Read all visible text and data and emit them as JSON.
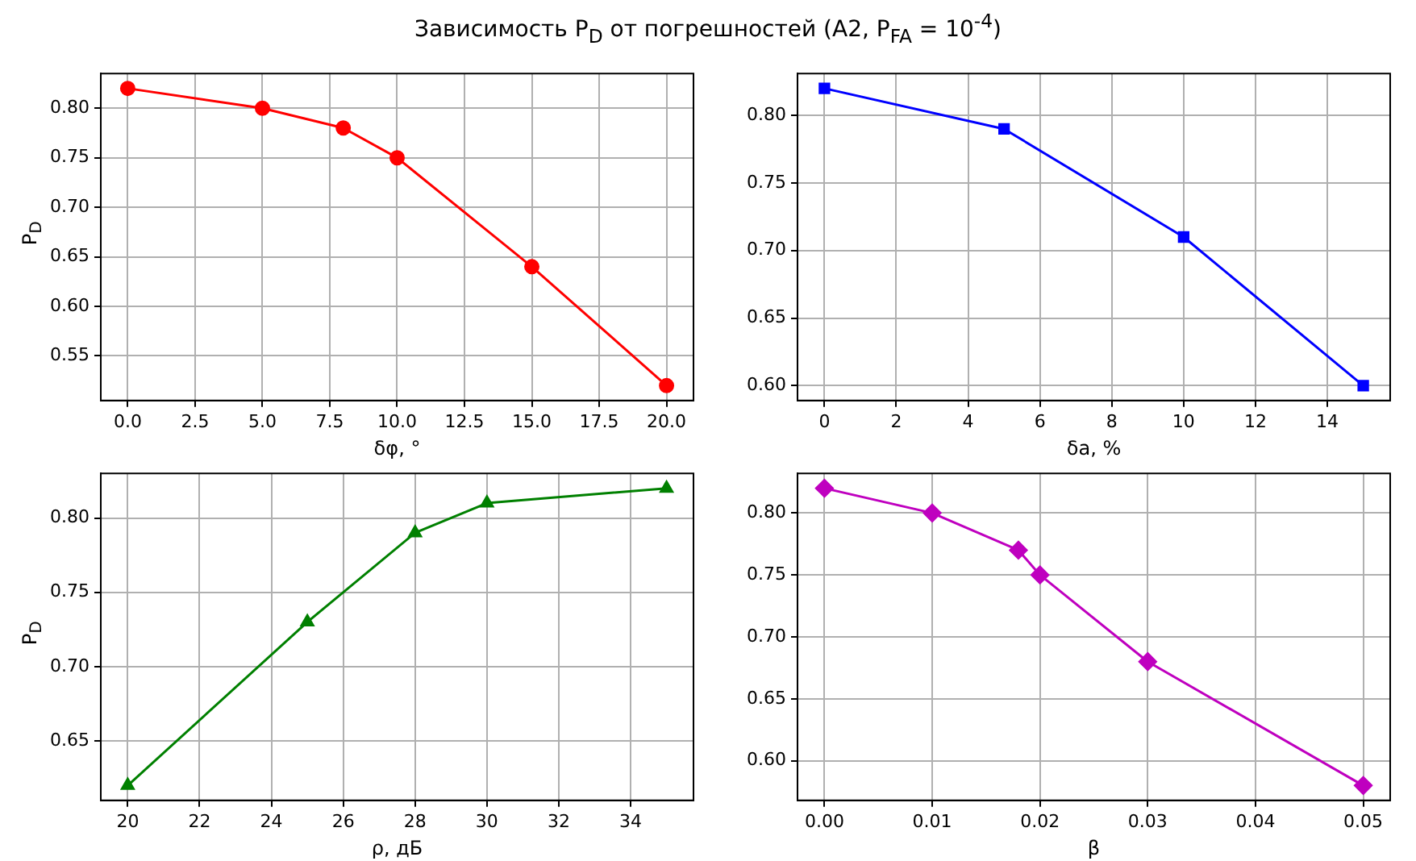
{
  "chart_data": [
    {
      "type": "line",
      "title": "Зависимость P$_{D}$ от погрешностей (A2, P$_{FA}$ = 10$^{-4}$)",
      "xlabel": "δφ, °",
      "ylabel": "P$_{D}$",
      "x": [
        0,
        5,
        8,
        10,
        15,
        20
      ],
      "series": [
        {
          "color": "#ff0000",
          "values": [
            0.82,
            0.8,
            0.78,
            0.75,
            0.64,
            0.52
          ]
        }
      ],
      "xlim": [
        -1,
        21
      ],
      "xticks": [
        {
          "value": 0,
          "label": "0.0"
        },
        {
          "value": 2.5,
          "label": "2.5"
        },
        {
          "value": 5,
          "label": "5.0"
        },
        {
          "value": 7.5,
          "label": "7.5"
        },
        {
          "value": 10,
          "label": "10.0"
        },
        {
          "value": 12.5,
          "label": "12.5"
        },
        {
          "value": 15,
          "label": "15.0"
        },
        {
          "value": 17.5,
          "label": "17.5"
        },
        {
          "value": 20,
          "label": "20.0"
        }
      ],
      "ylim": [
        0.505,
        0.835
      ],
      "yticks": [
        {
          "value": 0.55,
          "label": "0.55"
        },
        {
          "value": 0.6,
          "label": "0.60"
        },
        {
          "value": 0.65,
          "label": "0.65"
        },
        {
          "value": 0.7,
          "label": "0.70"
        },
        {
          "value": 0.75,
          "label": "0.75"
        },
        {
          "value": 0.8,
          "label": "0.80"
        }
      ],
      "grid": true,
      "marker": "circle",
      "line_style": "solid",
      "legend": false
    },
    {
      "type": "line",
      "xlabel": "δa, %",
      "x": [
        0,
        5,
        10,
        15
      ],
      "series": [
        {
          "color": "#0000ff",
          "values": [
            0.82,
            0.79,
            0.71,
            0.6
          ]
        }
      ],
      "xlim": [
        -0.75,
        15.75
      ],
      "xticks": [
        0,
        2,
        4,
        6,
        8,
        10,
        12,
        14
      ],
      "ylim": [
        0.589,
        0.831
      ],
      "yticks": [
        {
          "value": 0.6,
          "label": "0.60"
        },
        {
          "value": 0.65,
          "label": "0.65"
        },
        {
          "value": 0.7,
          "label": "0.70"
        },
        {
          "value": 0.75,
          "label": "0.75"
        },
        {
          "value": 0.8,
          "label": "0.80"
        }
      ],
      "grid": true,
      "marker": "square",
      "line_style": "solid",
      "legend": false
    },
    {
      "type": "line",
      "xlabel": "ρ, дБ",
      "ylabel": "P$_{D}$",
      "x": [
        20,
        25,
        28,
        30,
        35
      ],
      "series": [
        {
          "color": "#008000",
          "values": [
            0.62,
            0.73,
            0.79,
            0.81,
            0.82
          ]
        }
      ],
      "xlim": [
        19.25,
        35.75
      ],
      "xticks": [
        20,
        22,
        24,
        26,
        28,
        30,
        32,
        34
      ],
      "ylim": [
        0.61,
        0.83
      ],
      "yticks": [
        {
          "value": 0.65,
          "label": "0.65"
        },
        {
          "value": 0.7,
          "label": "0.70"
        },
        {
          "value": 0.75,
          "label": "0.75"
        },
        {
          "value": 0.8,
          "label": "0.80"
        }
      ],
      "grid": true,
      "marker": "triangle",
      "line_style": "solid",
      "legend": false
    },
    {
      "type": "line",
      "xlabel": "β",
      "x": [
        0,
        0.01,
        0.018,
        0.02,
        0.03,
        0.05
      ],
      "series": [
        {
          "color": "#bf00bf",
          "values": [
            0.82,
            0.8,
            0.77,
            0.75,
            0.68,
            0.58
          ]
        }
      ],
      "xlim": [
        -0.0025,
        0.0525
      ],
      "xticks": [
        {
          "value": 0,
          "label": "0.00"
        },
        {
          "value": 0.01,
          "label": "0.01"
        },
        {
          "value": 0.02,
          "label": "0.02"
        },
        {
          "value": 0.03,
          "label": "0.03"
        },
        {
          "value": 0.04,
          "label": "0.04"
        },
        {
          "value": 0.05,
          "label": "0.05"
        }
      ],
      "ylim": [
        0.568,
        0.832
      ],
      "yticks": [
        {
          "value": 0.6,
          "label": "0.60"
        },
        {
          "value": 0.65,
          "label": "0.65"
        },
        {
          "value": 0.7,
          "label": "0.70"
        },
        {
          "value": 0.75,
          "label": "0.75"
        },
        {
          "value": 0.8,
          "label": "0.80"
        }
      ],
      "grid": true,
      "marker": "diamond",
      "line_style": "solid",
      "legend": false
    }
  ]
}
